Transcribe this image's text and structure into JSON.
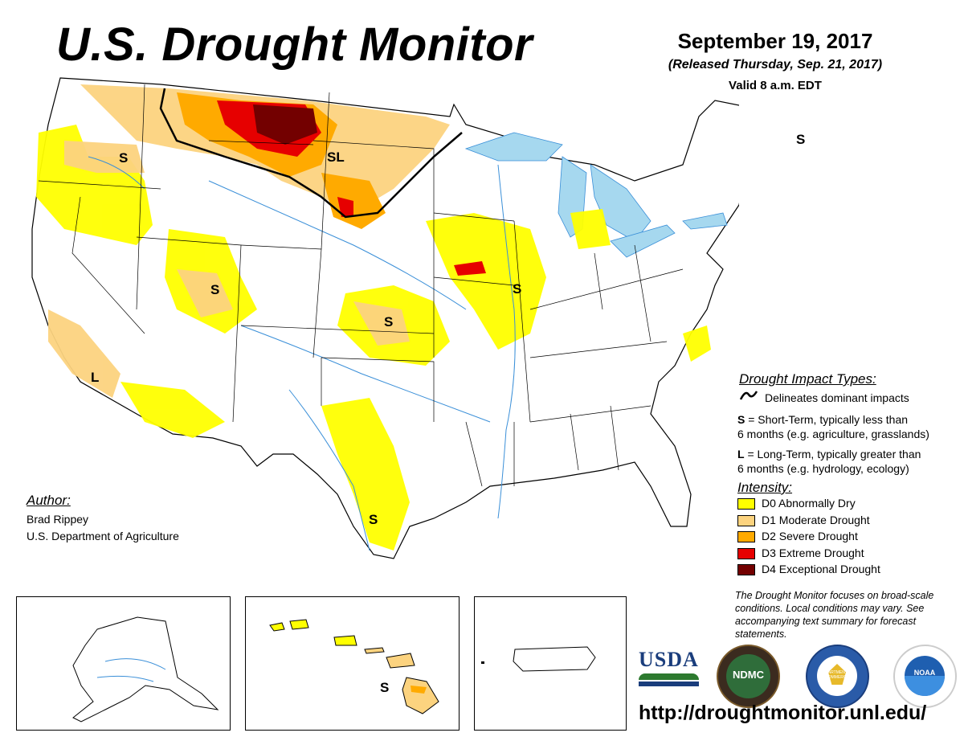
{
  "header": {
    "title": "U.S. Drought Monitor",
    "date": "September 19, 2017",
    "released": "(Released Thursday, Sep. 21, 2017)",
    "valid": "Valid 8 a.m. EDT"
  },
  "map_labels": {
    "s_oregon": "S",
    "sl_dakotas": "SL",
    "s_utah": "S",
    "s_kansas": "S",
    "s_illinois": "S",
    "l_socal": "L",
    "s_texas": "S",
    "s_maine": "S",
    "s_hawaii": "S"
  },
  "impact_legend": {
    "heading": "Drought Impact Types:",
    "line_label": "Delineates dominant impacts",
    "s_key": "S",
    "s_line1": " = Short-Term, typically less than",
    "s_line2": "6 months (e.g. agriculture, grasslands)",
    "l_key": "L",
    "l_line1": " = Long-Term, typically greater than",
    "l_line2": "6 months (e.g. hydrology, ecology)"
  },
  "intensity_legend": {
    "heading": "Intensity:",
    "items": [
      {
        "label": "D0 Abnormally Dry",
        "color": "#ffff00"
      },
      {
        "label": "D1 Moderate Drought",
        "color": "#fcd37f"
      },
      {
        "label": "D2 Severe Drought",
        "color": "#ffaa00"
      },
      {
        "label": "D3 Extreme Drought",
        "color": "#e60000"
      },
      {
        "label": "D4 Exceptional Drought",
        "color": "#730000"
      }
    ]
  },
  "note": "The Drought Monitor focuses on broad-scale conditions. Local conditions may vary. See accompanying text summary for forecast statements.",
  "author": {
    "heading": "Author:",
    "name": "Brad Rippey",
    "org": "U.S. Department of Agriculture"
  },
  "logos": {
    "usda": "USDA",
    "ndmc": "NDMC",
    "commerce": "DEPARTMENT OF COMMERCE",
    "noaa": "NOAA"
  },
  "url": "http://droughtmonitor.unl.edu/",
  "colors": {
    "water": "#a6d8ef",
    "river": "#3a8fd8"
  }
}
